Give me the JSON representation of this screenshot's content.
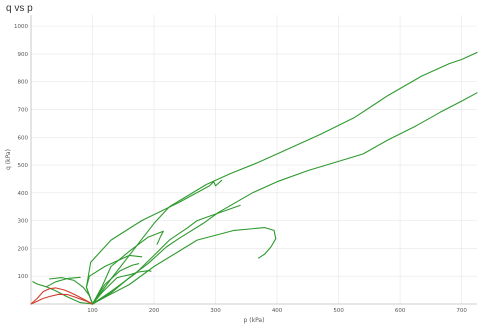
{
  "chart_data": {
    "type": "line",
    "title": "q vs p",
    "xlabel": "p (kPa)",
    "ylabel": "q (kPa)",
    "xlim": [
      0,
      725
    ],
    "ylim": [
      0,
      1040
    ],
    "x_ticks": [
      "100",
      "200",
      "300",
      "400",
      "500",
      "600",
      "700"
    ],
    "y_ticks": [
      "100",
      "200",
      "300",
      "400",
      "500",
      "600",
      "700",
      "800",
      "900",
      "1000"
    ],
    "grid": true,
    "colors": {
      "green": "#2e9a2e",
      "red": "#d23c2c",
      "grid": "#e6e6e6",
      "axis": "#bbbbbb"
    },
    "series": [
      {
        "color": "#2e9a2e",
        "points": [
          [
            100,
            0
          ],
          [
            130,
            90
          ],
          [
            165,
            190
          ],
          [
            200,
            290
          ],
          [
            225,
            350
          ],
          [
            255,
            390
          ],
          [
            285,
            430
          ],
          [
            325,
            470
          ],
          [
            370,
            510
          ],
          [
            420,
            560
          ],
          [
            470,
            610
          ],
          [
            525,
            670
          ],
          [
            580,
            750
          ],
          [
            635,
            820
          ],
          [
            680,
            865
          ],
          [
            700,
            880
          ],
          [
            725,
            905
          ]
        ]
      },
      {
        "color": "#2e9a2e",
        "points": [
          [
            100,
            0
          ],
          [
            90,
            60
          ],
          [
            97,
            150
          ],
          [
            130,
            230
          ],
          [
            180,
            300
          ],
          [
            240,
            365
          ],
          [
            290,
            425
          ],
          [
            297,
            440
          ],
          [
            300,
            425
          ],
          [
            310,
            445
          ]
        ]
      },
      {
        "color": "#2e9a2e",
        "points": [
          [
            100,
            0
          ],
          [
            90,
            60
          ],
          [
            95,
            100
          ],
          [
            120,
            135
          ],
          [
            160,
            175
          ],
          [
            180,
            170
          ]
        ]
      },
      {
        "color": "#2e9a2e",
        "points": [
          [
            100,
            0
          ],
          [
            125,
            30
          ],
          [
            160,
            70
          ],
          [
            200,
            135
          ],
          [
            270,
            230
          ],
          [
            330,
            265
          ],
          [
            380,
            275
          ],
          [
            395,
            265
          ],
          [
            398,
            235
          ],
          [
            390,
            205
          ],
          [
            380,
            180
          ],
          [
            370,
            165
          ]
        ]
      },
      {
        "color": "#2e9a2e",
        "points": [
          [
            100,
            0
          ],
          [
            130,
            40
          ],
          [
            160,
            95
          ],
          [
            190,
            145
          ],
          [
            220,
            205
          ],
          [
            240,
            235
          ],
          [
            280,
            290
          ],
          [
            305,
            330
          ],
          [
            360,
            400
          ],
          [
            400,
            440
          ],
          [
            450,
            480
          ],
          [
            510,
            520
          ],
          [
            540,
            540
          ],
          [
            580,
            590
          ],
          [
            625,
            640
          ],
          [
            665,
            690
          ],
          [
            700,
            730
          ],
          [
            725,
            760
          ]
        ]
      },
      {
        "color": "#2e9a2e",
        "points": [
          [
            100,
            0
          ],
          [
            80,
            5
          ],
          [
            60,
            25
          ],
          [
            40,
            48
          ],
          [
            25,
            62
          ],
          [
            10,
            72
          ],
          [
            3,
            80
          ]
        ]
      },
      {
        "color": "#2e9a2e",
        "points": [
          [
            25,
            62
          ],
          [
            40,
            80
          ],
          [
            60,
            92
          ],
          [
            80,
            96
          ]
        ]
      },
      {
        "color": "#2e9a2e",
        "points": [
          [
            100,
            0
          ],
          [
            130,
            45
          ],
          [
            170,
            110
          ],
          [
            200,
            175
          ],
          [
            225,
            230
          ],
          [
            255,
            275
          ],
          [
            270,
            300
          ],
          [
            295,
            320
          ],
          [
            340,
            355
          ]
        ]
      },
      {
        "color": "#2e9a2e",
        "points": [
          [
            100,
            0
          ],
          [
            115,
            60
          ],
          [
            130,
            135
          ],
          [
            160,
            190
          ],
          [
            190,
            240
          ],
          [
            215,
            262
          ],
          [
            210,
            240
          ],
          [
            205,
            215
          ]
        ]
      },
      {
        "color": "#2e9a2e",
        "points": [
          [
            100,
            0
          ],
          [
            115,
            40
          ],
          [
            140,
            95
          ],
          [
            160,
            105
          ],
          [
            175,
            115
          ],
          [
            190,
            120
          ],
          [
            195,
            118
          ]
        ]
      },
      {
        "color": "#2e9a2e",
        "points": [
          [
            100,
            0
          ],
          [
            120,
            70
          ],
          [
            145,
            120
          ],
          [
            165,
            140
          ],
          [
            175,
            145
          ]
        ]
      },
      {
        "color": "#2e9a2e",
        "points": [
          [
            100,
            0
          ],
          [
            95,
            30
          ],
          [
            85,
            60
          ],
          [
            70,
            85
          ],
          [
            50,
            95
          ],
          [
            30,
            90
          ]
        ]
      },
      {
        "color": "#d23c2c",
        "points": [
          [
            0,
            0
          ],
          [
            10,
            10
          ],
          [
            20,
            20
          ],
          [
            30,
            27
          ],
          [
            45,
            35
          ],
          [
            60,
            34
          ],
          [
            75,
            22
          ],
          [
            90,
            10
          ],
          [
            100,
            0
          ]
        ]
      },
      {
        "color": "#d23c2c",
        "points": [
          [
            0,
            0
          ],
          [
            10,
            20
          ],
          [
            20,
            45
          ],
          [
            30,
            55
          ],
          [
            40,
            58
          ],
          [
            55,
            50
          ],
          [
            70,
            35
          ],
          [
            85,
            18
          ],
          [
            100,
            0
          ]
        ]
      }
    ]
  }
}
